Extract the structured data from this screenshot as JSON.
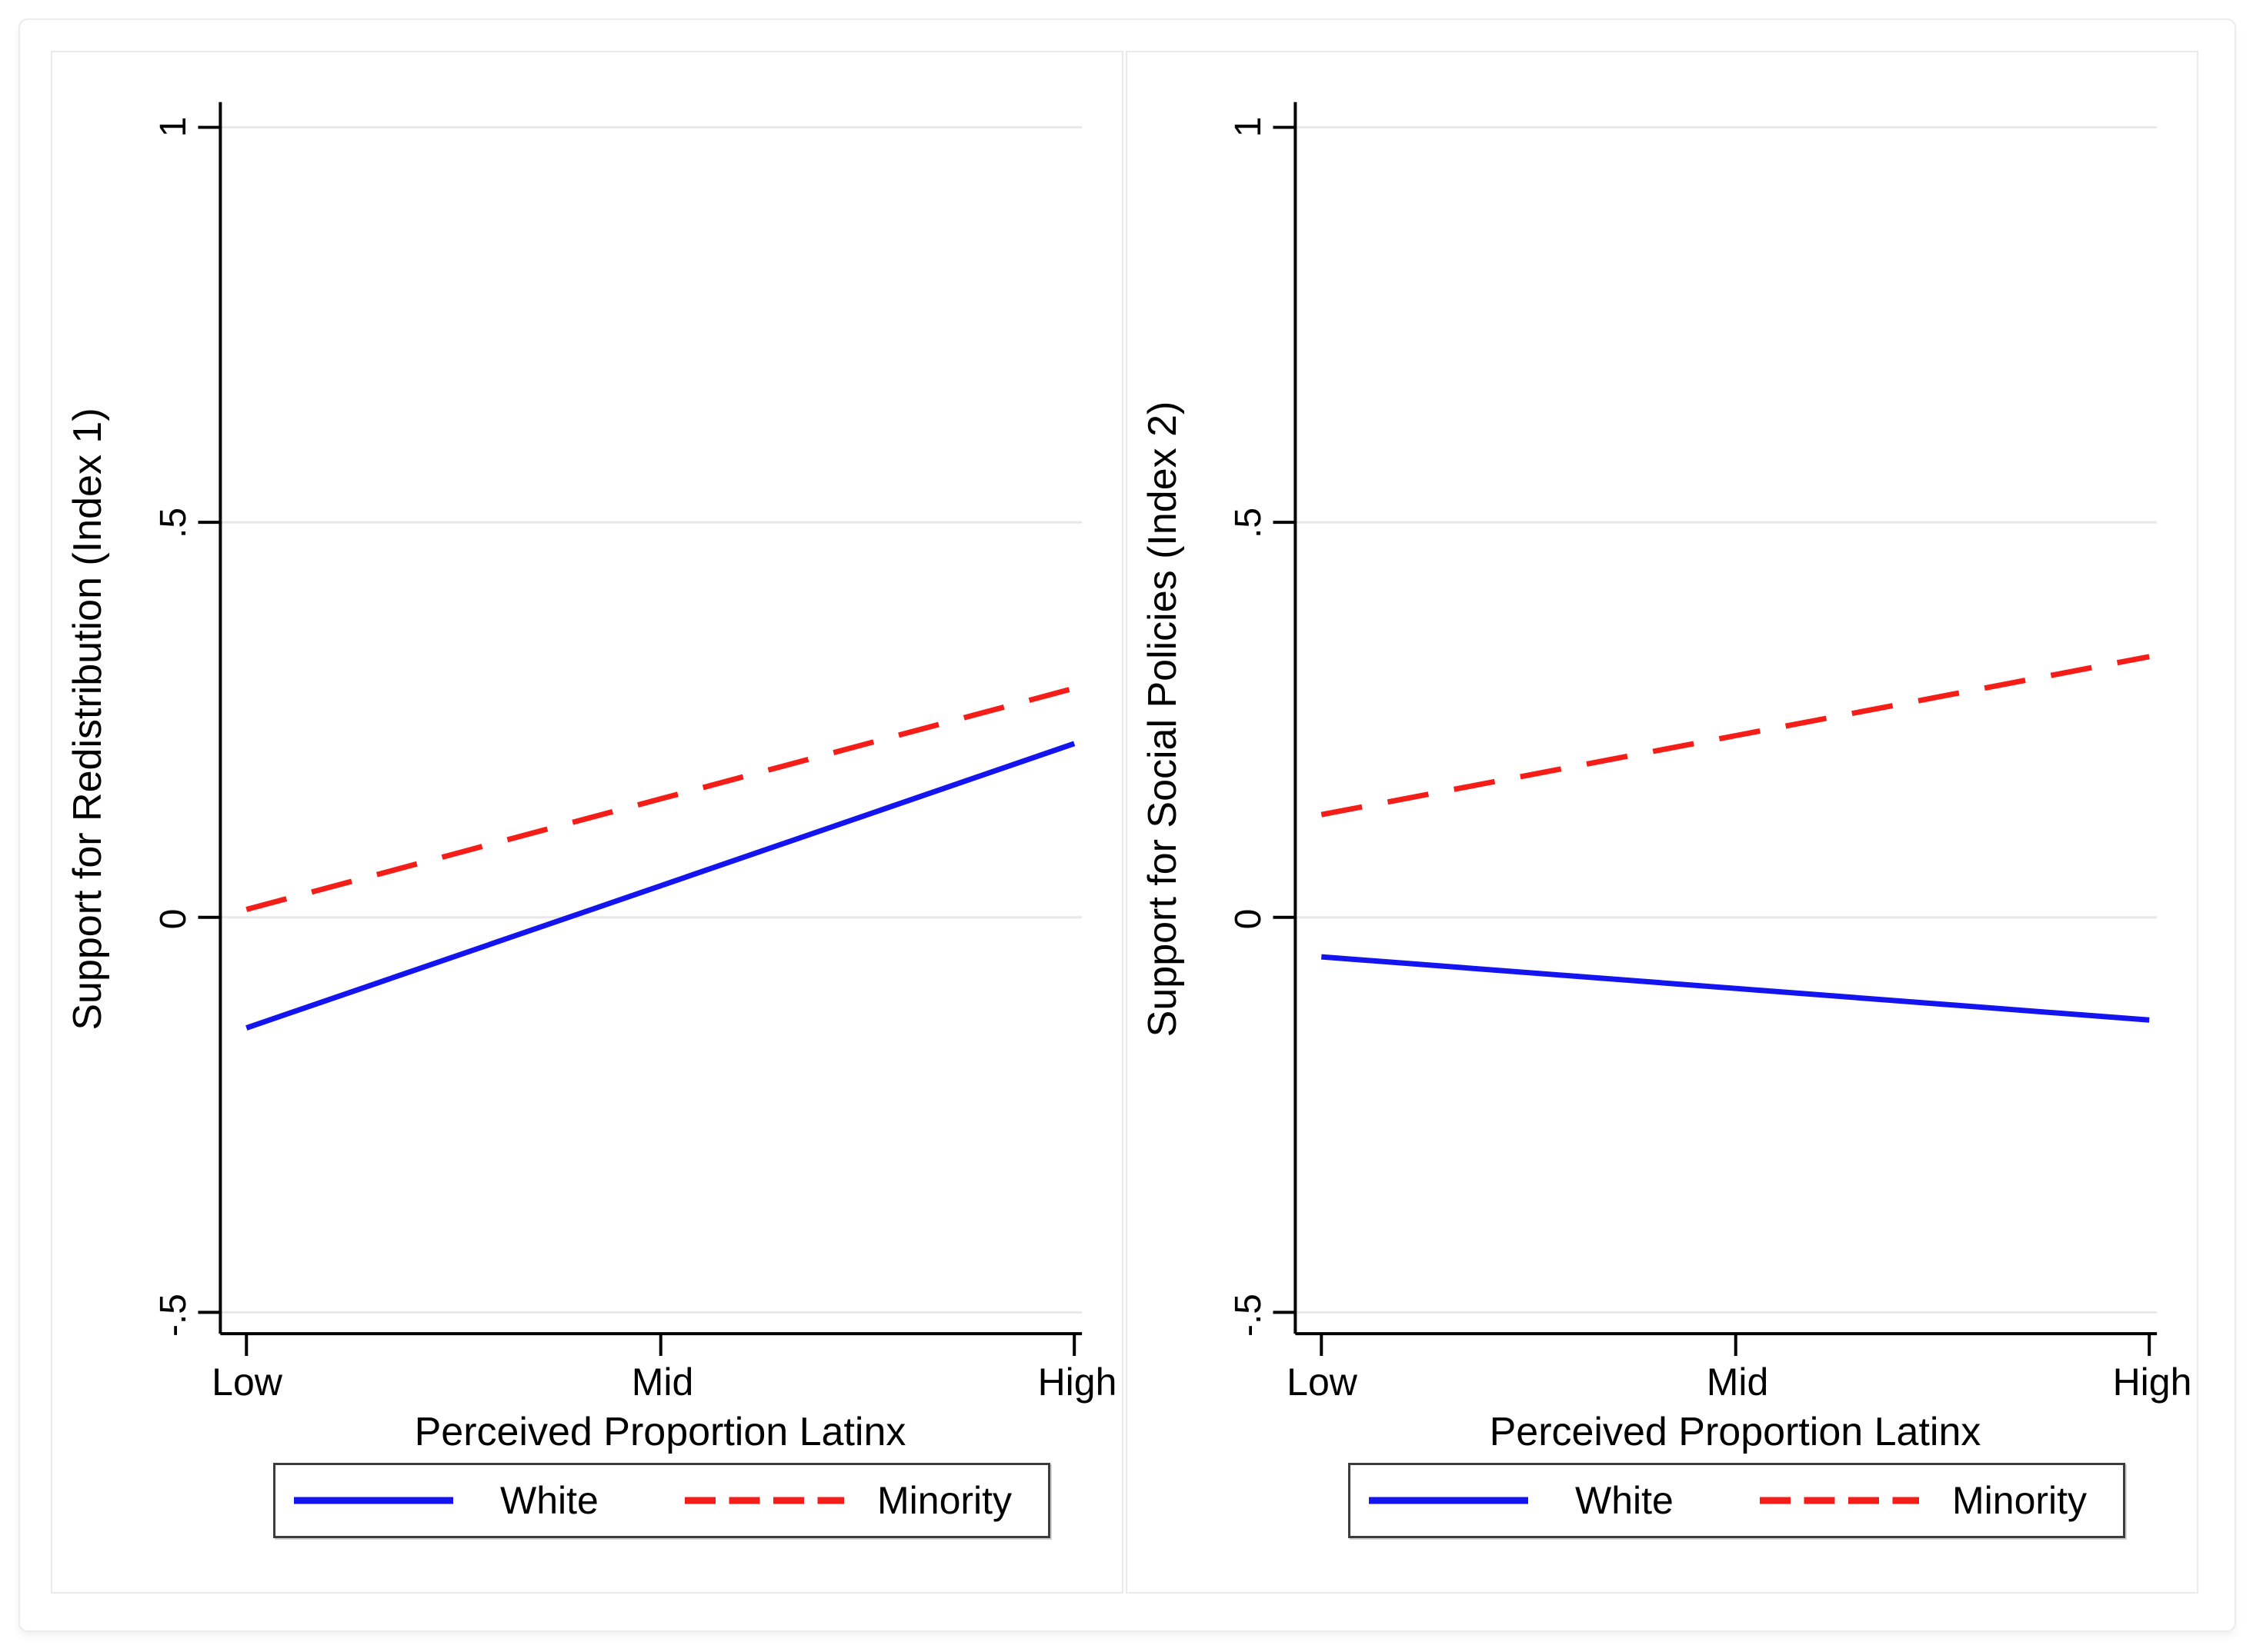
{
  "figure": {
    "background": "#ffffff",
    "frame_border_color": "#ececec",
    "panel_border_color": "#eaeaea"
  },
  "palette": {
    "grid": "#e8e8e8",
    "axis": "#000000",
    "text": "#000000",
    "legend_border": "#3c3c3c"
  },
  "legend": {
    "position": "bottom",
    "entries": [
      "White",
      "Minority"
    ]
  },
  "chart_data": [
    {
      "type": "line",
      "title": "",
      "x_categories": [
        "Low",
        "Mid",
        "High"
      ],
      "xlabel": "Perceived Proportion Latinx",
      "ylabel": "Support for Redistribution (Index 1)",
      "yticks": [
        {
          "value": 1,
          "label": "1"
        },
        {
          "value": 0.5,
          "label": ".5"
        },
        {
          "value": 0,
          "label": "0"
        },
        {
          "value": -0.5,
          "label": "-.5"
        }
      ],
      "ylim": [
        -0.527,
        1.032
      ],
      "grid": "horizontal",
      "legend_position": "bottom",
      "series": [
        {
          "name": "White",
          "style": "solid",
          "color": "#1414f0",
          "values": [
            -0.14,
            0.04,
            0.22
          ]
        },
        {
          "name": "Minority",
          "style": "dashed",
          "color": "#f51d18",
          "values": [
            0.01,
            0.15,
            0.29
          ]
        }
      ]
    },
    {
      "type": "line",
      "title": "",
      "x_categories": [
        "Low",
        "Mid",
        "High"
      ],
      "xlabel": "Perceived Proportion Latinx",
      "ylabel": "Support for Social Policies (Index 2)",
      "yticks": [
        {
          "value": 1,
          "label": "1"
        },
        {
          "value": 0.5,
          "label": ".5"
        },
        {
          "value": 0,
          "label": "0"
        },
        {
          "value": -0.5,
          "label": "-.5"
        }
      ],
      "ylim": [
        -0.527,
        1.032
      ],
      "grid": "horizontal",
      "legend_position": "bottom",
      "series": [
        {
          "name": "White",
          "style": "solid",
          "color": "#1414f0",
          "values": [
            -0.05,
            -0.09,
            -0.13
          ]
        },
        {
          "name": "Minority",
          "style": "dashed",
          "color": "#f51d18",
          "values": [
            0.13,
            0.23,
            0.33
          ]
        }
      ]
    }
  ]
}
